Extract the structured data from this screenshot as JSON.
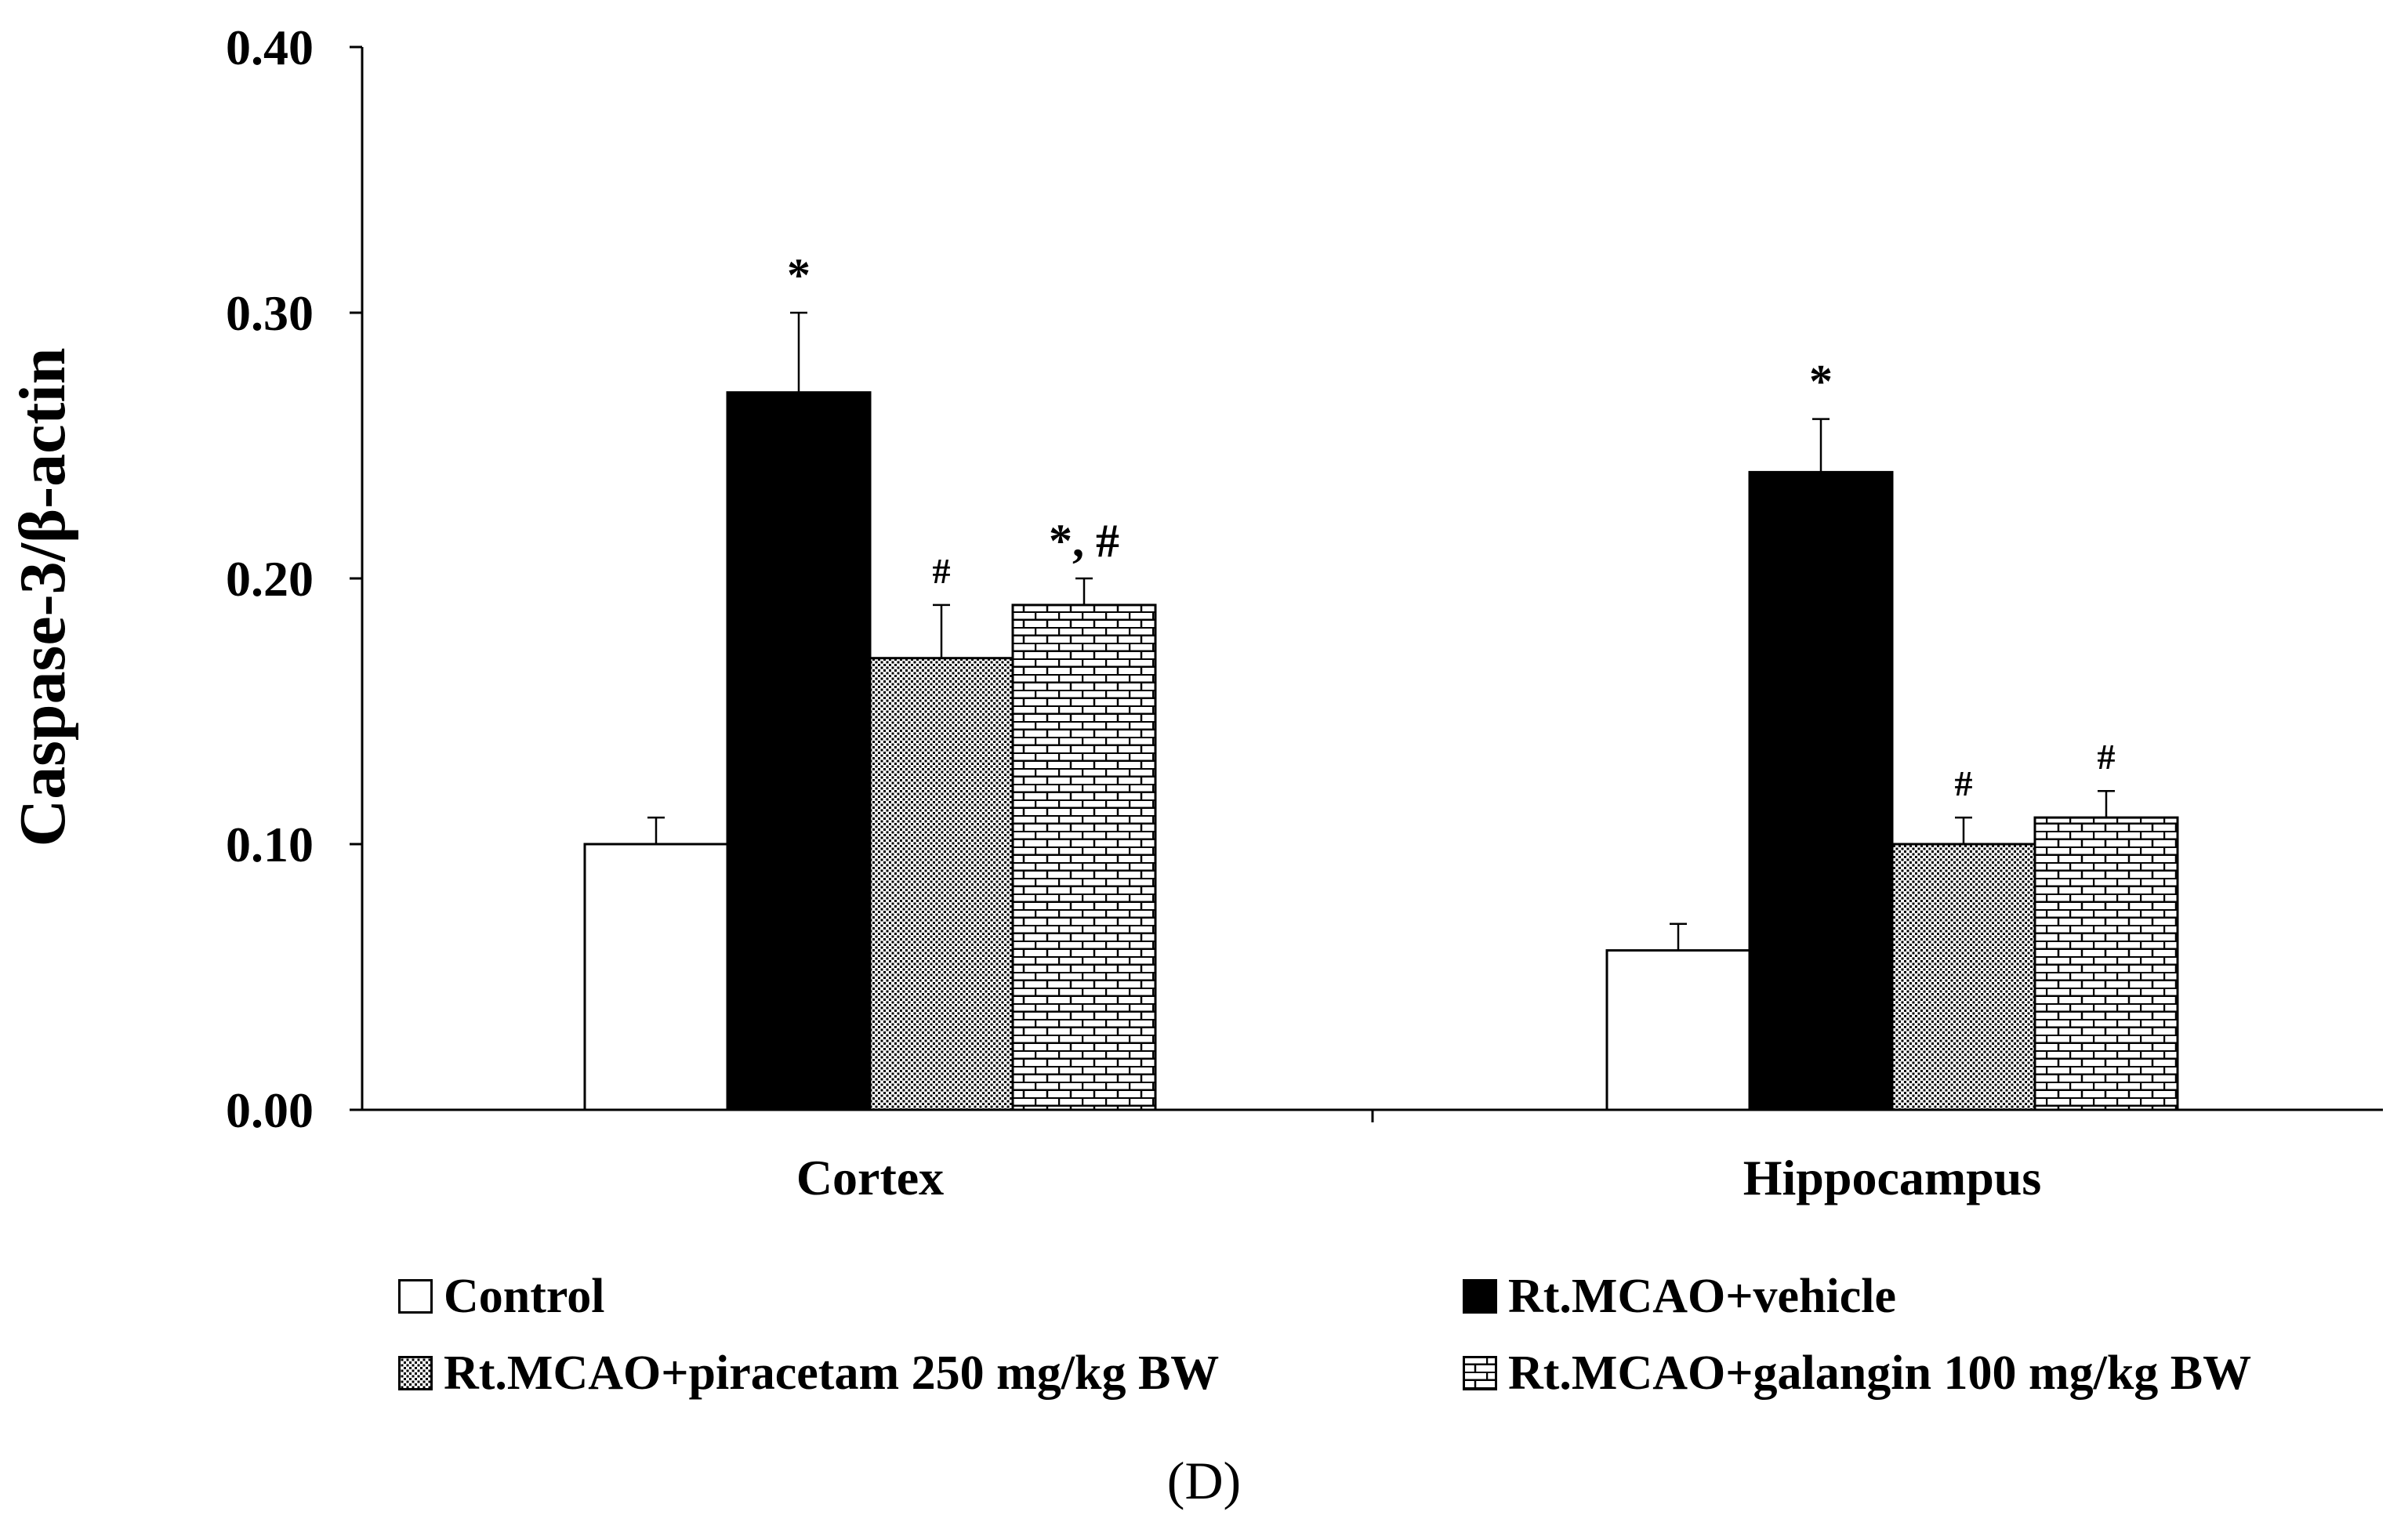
{
  "chart_data": {
    "type": "bar",
    "ylabel": "Caspase-3/β-actin",
    "xlabel": "",
    "ylim": [
      0,
      0.4
    ],
    "yticks": [
      0.0,
      0.1,
      0.2,
      0.3,
      0.4
    ],
    "ytick_labels": [
      "0.00",
      "0.10",
      "0.20",
      "0.30",
      "0.40"
    ],
    "categories": [
      "Cortex",
      "Hippocampus"
    ],
    "series": [
      {
        "name": "Control",
        "pattern": "white",
        "values": [
          0.1,
          0.06
        ],
        "errors": [
          0.01,
          0.01
        ],
        "annotations": [
          "",
          ""
        ]
      },
      {
        "name": "Rt.MCAO+vehicle",
        "pattern": "black",
        "values": [
          0.27,
          0.24
        ],
        "errors": [
          0.03,
          0.02
        ],
        "annotations": [
          "*",
          "*"
        ]
      },
      {
        "name": "Rt.MCAO+piracetam 250 mg/kg BW",
        "pattern": "dots",
        "values": [
          0.17,
          0.1
        ],
        "errors": [
          0.02,
          0.01
        ],
        "annotations": [
          "#",
          "#"
        ]
      },
      {
        "name": "Rt.MCAO+galangin 100 mg/kg BW",
        "pattern": "bricks",
        "values": [
          0.19,
          0.11
        ],
        "errors": [
          0.01,
          0.01
        ],
        "annotations": [
          "*, #",
          "#"
        ]
      }
    ],
    "legend_position": "bottom",
    "panel_label": "(D)",
    "grid": false
  },
  "colors": {
    "bar_black": "#000000",
    "bar_white": "#ffffff",
    "pattern": "#000000"
  }
}
